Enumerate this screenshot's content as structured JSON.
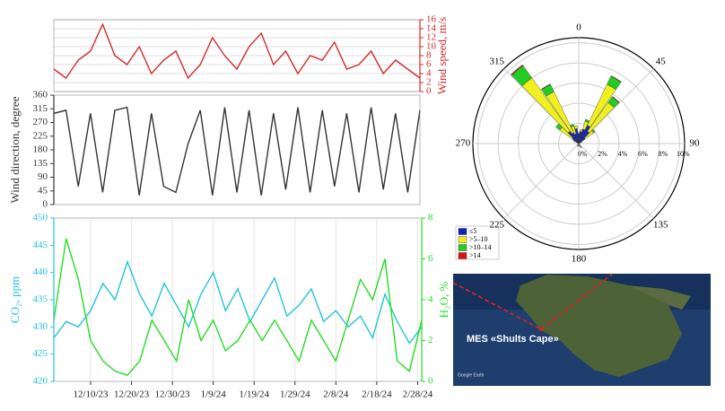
{
  "chart_data": [
    {
      "type": "line",
      "x": [
        "2023-12-01",
        "2023-12-04",
        "2023-12-07",
        "2023-12-10",
        "2023-12-13",
        "2023-12-16",
        "2023-12-19",
        "2023-12-22",
        "2023-12-25",
        "2023-12-28",
        "2023-12-31",
        "2024-01-03",
        "2024-01-06",
        "2024-01-09",
        "2024-01-12",
        "2024-01-15",
        "2024-01-18",
        "2024-01-21",
        "2024-01-24",
        "2024-01-27",
        "2024-01-30",
        "2024-02-02",
        "2024-02-05",
        "2024-02-08",
        "2024-02-11",
        "2024-02-14",
        "2024-02-17",
        "2024-02-20",
        "2024-02-23",
        "2024-02-26",
        "2024-02-29"
      ],
      "xlim": [
        "2023-12-01",
        "2024-02-29"
      ],
      "y2label": "Wind speed, m/s",
      "y2lim": [
        0,
        16
      ],
      "y2ticks": [
        0,
        2,
        4,
        6,
        8,
        10,
        12,
        14,
        16
      ],
      "grid": "y",
      "series": [
        {
          "name": "Wind speed",
          "color": "#d42a2a",
          "axis": "y2",
          "values": [
            5,
            3,
            7,
            9,
            15,
            8,
            6,
            10,
            4,
            7,
            9,
            3,
            6,
            12,
            8,
            5,
            10,
            13,
            6,
            9,
            4,
            8,
            7,
            11,
            5,
            6,
            9,
            4,
            7,
            5,
            3
          ]
        }
      ]
    },
    {
      "type": "line",
      "x": [
        "2023-12-01",
        "2023-12-04",
        "2023-12-07",
        "2023-12-10",
        "2023-12-13",
        "2023-12-16",
        "2023-12-19",
        "2023-12-22",
        "2023-12-25",
        "2023-12-28",
        "2023-12-31",
        "2024-01-03",
        "2024-01-06",
        "2024-01-09",
        "2024-01-12",
        "2024-01-15",
        "2024-01-18",
        "2024-01-21",
        "2024-01-24",
        "2024-01-27",
        "2024-01-30",
        "2024-02-02",
        "2024-02-05",
        "2024-02-08",
        "2024-02-11",
        "2024-02-14",
        "2024-02-17",
        "2024-02-20",
        "2024-02-23",
        "2024-02-26",
        "2024-02-29"
      ],
      "xlim": [
        "2023-12-01",
        "2024-02-29"
      ],
      "ylabel": "Wind direction, degree",
      "ylim": [
        0,
        360
      ],
      "yticks": [
        0,
        45,
        90,
        135,
        180,
        225,
        270,
        315,
        360
      ],
      "series": [
        {
          "name": "Wind direction",
          "color": "#333333",
          "axis": "y",
          "values": [
            300,
            310,
            60,
            300,
            40,
            310,
            320,
            30,
            300,
            60,
            40,
            200,
            310,
            30,
            320,
            40,
            310,
            30,
            300,
            50,
            320,
            40,
            310,
            60,
            300,
            40,
            320,
            50,
            300,
            40,
            310
          ]
        }
      ]
    },
    {
      "type": "line",
      "x": [
        "2023-12-01",
        "2023-12-04",
        "2023-12-07",
        "2023-12-10",
        "2023-12-13",
        "2023-12-16",
        "2023-12-19",
        "2023-12-22",
        "2023-12-25",
        "2023-12-28",
        "2023-12-31",
        "2024-01-03",
        "2024-01-06",
        "2024-01-09",
        "2024-01-12",
        "2024-01-15",
        "2024-01-18",
        "2024-01-21",
        "2024-01-24",
        "2024-01-27",
        "2024-01-30",
        "2024-02-02",
        "2024-02-05",
        "2024-02-08",
        "2024-02-11",
        "2024-02-14",
        "2024-02-17",
        "2024-02-20",
        "2024-02-23",
        "2024-02-26",
        "2024-02-29"
      ],
      "xlim": [
        "2023-12-01",
        "2024-02-29"
      ],
      "xticks": [
        {
          "value": "2023-12-10",
          "label": "12/10/23"
        },
        {
          "value": "2023-12-20",
          "label": "12/20/23"
        },
        {
          "value": "2023-12-30",
          "label": "12/30/23"
        },
        {
          "value": "2024-01-09",
          "label": "1/9/24"
        },
        {
          "value": "2024-01-19",
          "label": "1/19/24"
        },
        {
          "value": "2024-01-29",
          "label": "1/29/24"
        },
        {
          "value": "2024-02-08",
          "label": "2/8/24"
        },
        {
          "value": "2024-02-18",
          "label": "2/18/24"
        },
        {
          "value": "2024-02-28",
          "label": "2/28/24"
        }
      ],
      "grid": "x",
      "ylabel": "CO₂, ppm",
      "ylim": [
        420,
        450
      ],
      "yticks": [
        420,
        425,
        430,
        435,
        440,
        445,
        450
      ],
      "y2label": "H₂O, %",
      "y2lim": [
        0,
        8
      ],
      "y2ticks": [
        0,
        2,
        4,
        6,
        8
      ],
      "series": [
        {
          "name": "CO₂",
          "color": "#22c4dc",
          "axis": "y",
          "values": [
            428,
            431,
            430,
            433,
            438,
            435,
            442,
            436,
            432,
            438,
            434,
            430,
            436,
            440,
            433,
            437,
            431,
            435,
            439,
            432,
            434,
            437,
            431,
            433,
            430,
            432,
            428,
            436,
            431,
            427,
            430
          ]
        },
        {
          "name": "H₂O",
          "color": "#22dd22",
          "axis": "y2",
          "values": [
            3,
            7,
            5,
            2,
            1,
            0.5,
            0.3,
            1,
            3,
            2,
            1,
            4,
            2,
            3,
            1.5,
            2,
            3,
            2,
            3,
            2,
            1,
            3,
            2,
            1,
            3,
            5,
            4,
            6,
            1,
            0.5,
            3
          ]
        }
      ]
    },
    {
      "type": "windrose",
      "categories": [
        300,
        310,
        320,
        330,
        340,
        350,
        0,
        10,
        20,
        30,
        40,
        50,
        60,
        150,
        180,
        210
      ],
      "angle_ticks": [
        0,
        45,
        90,
        135,
        180,
        225,
        270,
        315
      ],
      "rlim": [
        0,
        10.5
      ],
      "rticks": [
        {
          "value": 0,
          "label": "0%"
        },
        {
          "value": 2,
          "label": "2%"
        },
        {
          "value": 4,
          "label": "4%"
        },
        {
          "value": 6,
          "label": "6%"
        },
        {
          "value": 8,
          "label": "8%"
        },
        {
          "value": 10,
          "label": "10%"
        }
      ],
      "series": [
        {
          "name": "≤5",
          "color": "#1020c0",
          "values": [
            0.3,
            0.8,
            1.5,
            1.2,
            1.0,
            1.5,
            1.0,
            1.2,
            1.5,
            2.0,
            1.5,
            0.8,
            0.3,
            0.4,
            0.3,
            0.3
          ]
        },
        {
          "name": ">5–10",
          "color": "#f0f020",
          "values": [
            0.2,
            1.5,
            6.5,
            4.5,
            0.8,
            0.3,
            0.1,
            0.2,
            0.8,
            4.5,
            3.5,
            1.0,
            0.1,
            0.1,
            0,
            0
          ]
        },
        {
          "name": ">10–14",
          "color": "#22cc22",
          "values": [
            0.1,
            0.5,
            1.5,
            0.8,
            0.2,
            0,
            0,
            0,
            0.2,
            0.9,
            0.7,
            0.2,
            0,
            0,
            0,
            0
          ]
        },
        {
          "name": ">14",
          "color": "#dd1111",
          "values": [
            0,
            0,
            0.1,
            0.05,
            0,
            0,
            0,
            0,
            0,
            0.05,
            0.05,
            0,
            0,
            0,
            0,
            0
          ]
        }
      ]
    }
  ],
  "map": {
    "label": "MES «Shults Cape»",
    "credit": "Google Earth"
  }
}
